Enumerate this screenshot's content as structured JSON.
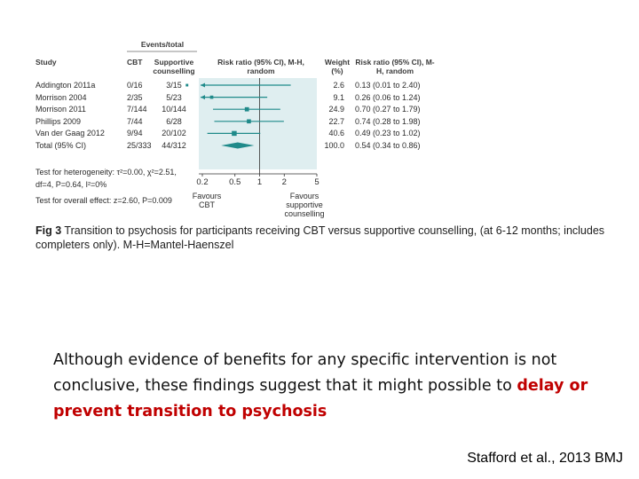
{
  "chart_data": {
    "type": "forest",
    "header_group": "Events/total",
    "columns": {
      "study": "Study",
      "cbt": "CBT",
      "supportive": "Supportive counselling",
      "rr_plot": "Risk ratio (95% CI), M-H, random",
      "weight": "Weight (%)",
      "rr_text": "Risk ratio (95% CI), M-H, random"
    },
    "studies": [
      {
        "study": "Addington 2011a",
        "cbt": "0/16",
        "supportive": "3/15",
        "weight": "2.6",
        "rr_text": "0.13 (0.01 to 2.40)",
        "rr": 0.13,
        "lo": 0.01,
        "hi": 2.4
      },
      {
        "study": "Morrison 2004",
        "cbt": "2/35",
        "supportive": "5/23",
        "weight": "9.1",
        "rr_text": "0.26 (0.06 to 1.24)",
        "rr": 0.26,
        "lo": 0.06,
        "hi": 1.24
      },
      {
        "study": "Morrison 2011",
        "cbt": "7/144",
        "supportive": "10/144",
        "weight": "24.9",
        "rr_text": "0.70 (0.27 to 1.79)",
        "rr": 0.7,
        "lo": 0.27,
        "hi": 1.79
      },
      {
        "study": "Phillips 2009",
        "cbt": "7/44",
        "supportive": "6/28",
        "weight": "22.7",
        "rr_text": "0.74 (0.28 to 1.98)",
        "rr": 0.74,
        "lo": 0.28,
        "hi": 1.98
      },
      {
        "study": "Van der Gaag 2012",
        "cbt": "9/94",
        "supportive": "20/102",
        "weight": "40.6",
        "rr_text": "0.49 (0.23 to 1.02)",
        "rr": 0.49,
        "lo": 0.23,
        "hi": 1.02
      }
    ],
    "total": {
      "study": "Total (95% CI)",
      "cbt": "25/333",
      "supportive": "44/312",
      "weight": "100.0",
      "rr_text": "0.54 (0.34 to 0.86)",
      "rr": 0.54,
      "lo": 0.34,
      "hi": 0.86
    },
    "heterogeneity_1": "Test for heterogeneity: τ²=0.00, χ²=2.51,",
    "heterogeneity_2": "df=4, P=0.64, I²=0%",
    "overall_effect": "Test for overall effect: z=2.60, P=0.009",
    "x_scale": "log",
    "xlim": [
      0.2,
      5
    ],
    "ticks": [
      0.2,
      0.5,
      1,
      2,
      5
    ],
    "tick_labels": [
      "0.2",
      "0.5",
      "1",
      "2",
      "5"
    ],
    "favours_left": "Favours CBT",
    "favours_right": "Favours supportive counselling",
    "colors": {
      "study": "#1f8a8a",
      "total": "#1f8a8a",
      "panel": "#dfeef0",
      "axis": "#333333"
    }
  },
  "caption": {
    "fig_label": "Fig 3",
    "text": "Transition to psychosis for participants receiving CBT versus supportive counselling, (at 6-12 months; includes completers only). M-H=Mantel-Haenszel"
  },
  "body": {
    "text": "Although evidence of benefits for any specific intervention is not conclusive, these findings suggest that it might possible to",
    "highlight": "delay or prevent transition to psychosis"
  },
  "citation": "Stafford et al., 2013 BMJ"
}
